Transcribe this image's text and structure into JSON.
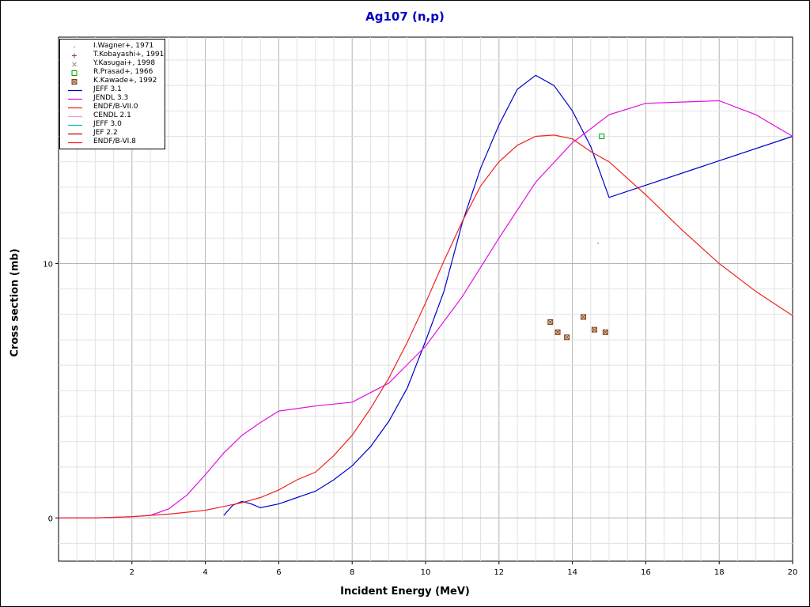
{
  "chart_data": {
    "type": "line",
    "title": "Ag107 (n,p)",
    "xlabel": "Incident Energy (MeV)",
    "ylabel": "Cross section (mb)",
    "xlim": [
      0,
      20
    ],
    "ylim": [
      -1.7,
      18.9
    ],
    "x_ticks": [
      2,
      4,
      6,
      8,
      10,
      12,
      14,
      16,
      18,
      20
    ],
    "x_tick_labels": [
      "2",
      "4",
      "6",
      "8",
      "10",
      "12",
      "14",
      "16",
      "18",
      "20"
    ],
    "y_ticks": [
      0,
      10
    ],
    "y_tick_labels": [
      "0",
      "10"
    ],
    "grid": true,
    "legend_position": "top-left",
    "experimental": [
      {
        "name": "I.Wagner+, 1971",
        "color": "#808080",
        "marker": "dot",
        "points": [
          [
            14.7,
            10.8
          ]
        ]
      },
      {
        "name": "T.Kobayashi+, 1991",
        "color": "#804040",
        "marker": "plus",
        "points": []
      },
      {
        "name": "Y.Kasugai+, 1998",
        "color": "#909090",
        "marker": "x",
        "points": []
      },
      {
        "name": "R.Prasad+, 1966",
        "color": "#00a000",
        "marker": "square",
        "points": [
          [
            14.8,
            15.0
          ]
        ]
      },
      {
        "name": "K.Kawade+, 1992",
        "color": "#804020",
        "marker": "hatched-square",
        "points": [
          [
            13.4,
            7.7
          ],
          [
            13.6,
            7.3
          ],
          [
            13.85,
            7.1
          ],
          [
            14.3,
            7.9
          ],
          [
            14.6,
            7.4
          ],
          [
            14.9,
            7.3
          ]
        ]
      }
    ],
    "series": [
      {
        "name": "JEFF 3.1",
        "color": "#0000cc",
        "x": [
          4.5,
          4.75,
          5.0,
          5.25,
          5.5,
          6.0,
          6.5,
          7.0,
          7.5,
          8.0,
          8.5,
          9.0,
          9.5,
          10.0,
          10.5,
          11.0,
          11.5,
          12.0,
          12.5,
          13.0,
          13.5,
          14.0,
          14.5,
          15.0,
          20.0
        ],
        "y": [
          0.1,
          0.5,
          0.65,
          0.55,
          0.4,
          0.55,
          0.8,
          1.05,
          1.5,
          2.05,
          2.8,
          3.8,
          5.1,
          6.95,
          8.9,
          11.6,
          13.75,
          15.45,
          16.85,
          17.4,
          17.0,
          16.0,
          14.6,
          12.6,
          15.0
        ]
      },
      {
        "name": "JENDL 3.3",
        "color": "#e010e0",
        "x": [
          0,
          1,
          2,
          2.5,
          3,
          3.5,
          4,
          4.5,
          5,
          5.5,
          6,
          7,
          8,
          9,
          10,
          11,
          12,
          13,
          14,
          15,
          16,
          17,
          18,
          19,
          20
        ],
        "y": [
          0,
          0,
          0.05,
          0.1,
          0.35,
          0.9,
          1.7,
          2.55,
          3.25,
          3.75,
          4.2,
          4.4,
          4.55,
          5.3,
          6.75,
          8.7,
          11.0,
          13.2,
          14.75,
          15.85,
          16.3,
          16.35,
          16.4,
          15.85,
          15.0
        ]
      },
      {
        "name": "ENDF/B-VII.0",
        "color": "#ee2222",
        "x": [
          0,
          1,
          2,
          3,
          4,
          4.5,
          5,
          5.5,
          6,
          6.5,
          7,
          7.5,
          8,
          8.5,
          9,
          9.5,
          10,
          10.5,
          11,
          11.5,
          12,
          12.5,
          13,
          13.5,
          14,
          14.5,
          15,
          16,
          17,
          18,
          19,
          20
        ],
        "y": [
          0,
          0,
          0.05,
          0.15,
          0.3,
          0.45,
          0.6,
          0.8,
          1.1,
          1.5,
          1.8,
          2.45,
          3.25,
          4.3,
          5.5,
          6.9,
          8.45,
          10.1,
          11.65,
          13.05,
          14.0,
          14.65,
          15.0,
          15.05,
          14.9,
          14.4,
          14.0,
          12.7,
          11.3,
          10.0,
          8.9,
          7.95
        ]
      },
      {
        "name": "CENDL 2.1",
        "color": "#e0a0e0",
        "x": [],
        "y": []
      },
      {
        "name": "JEFF 3.0",
        "color": "#00c0c0",
        "x": [],
        "y": []
      },
      {
        "name": "JEF 2.2",
        "color": "#c00000",
        "x": [],
        "y": []
      },
      {
        "name": "ENDF/B-VI.8",
        "color": "#ff2020",
        "x": [],
        "y": []
      }
    ]
  }
}
